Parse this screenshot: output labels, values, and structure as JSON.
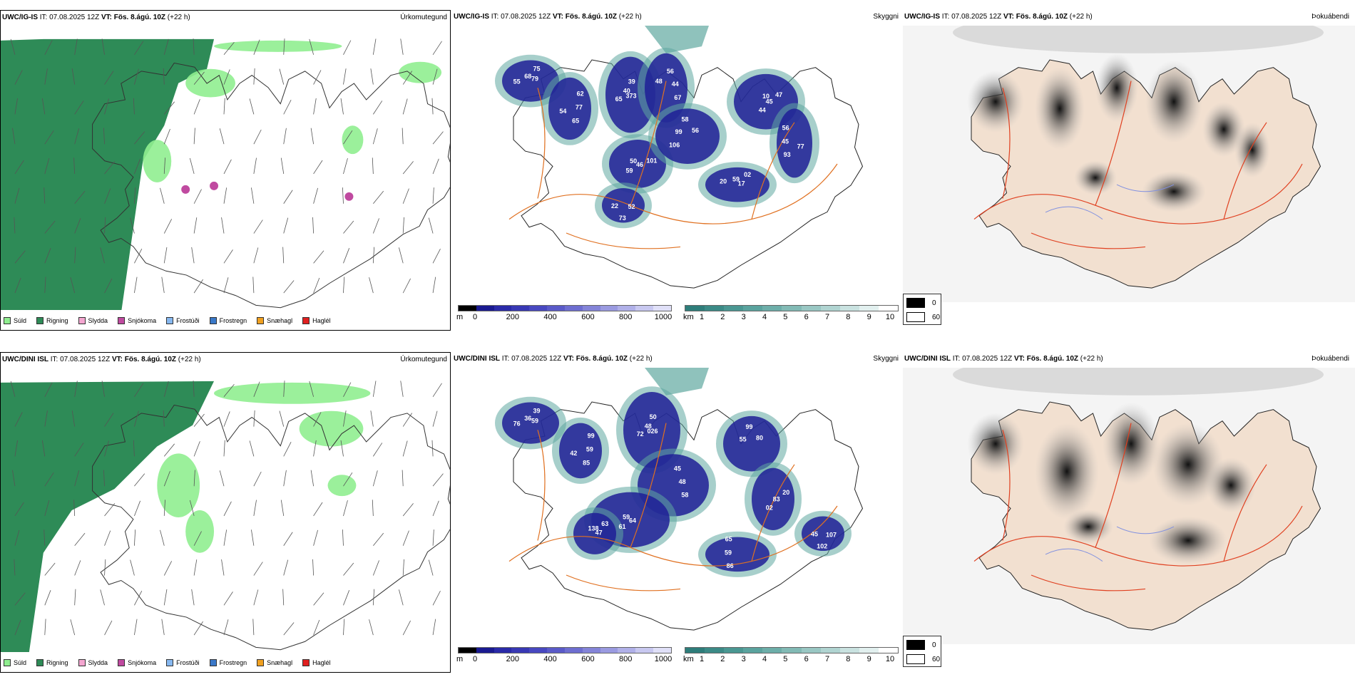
{
  "rows": [
    {
      "precip_panel": {
        "model": "UWC/IG-IS",
        "it": "IT: 07.08.2025 12Z",
        "vt": "VT: Fös. 8.ágú. 10Z",
        "lead": "(+22 h)",
        "title": "Úrkomutegund"
      },
      "cloud_panel": {
        "model": "UWC/IG-IS",
        "it": "IT: 07.08.2025 12Z",
        "vt": "VT: Fös. 8.ágú. 10Z",
        "lead": "(+22 h)",
        "title": "Skyggni",
        "numbers": [
          "79",
          "54",
          "39",
          "67",
          "50",
          "56",
          "44",
          "56",
          "17",
          "22",
          "75",
          "65",
          "40",
          "44",
          "59",
          "58",
          "45",
          "45",
          "02",
          "73",
          "68",
          "77",
          "65",
          "56",
          "46",
          "99",
          "47",
          "93",
          "59",
          "52",
          "55",
          "62",
          "373",
          "48",
          "101",
          "106",
          "10",
          "77",
          "20"
        ]
      },
      "fog_panel": {
        "model": "UWC/IG-IS",
        "it": "IT: 07.08.2025 12Z",
        "vt": "VT: Fös. 8.ágú. 10Z",
        "lead": "(+22 h)",
        "title": "Þokuábendi"
      }
    },
    {
      "precip_panel": {
        "model": "UWC/DINI ISL",
        "it": "IT: 07.08.2025 12Z",
        "vt": "VT: Fös. 8.ágú. 10Z",
        "lead": "(+22 h)",
        "title": "Úrkomutegund"
      },
      "cloud_panel": {
        "model": "UWC/DINI ISL",
        "it": "IT: 07.08.2025 12Z",
        "vt": "VT: Fös. 8.ágú. 10Z",
        "lead": "(+22 h)",
        "title": "Skyggni",
        "numbers": [
          "59",
          "42",
          "50",
          "58",
          "59",
          "80",
          "02",
          "65",
          "47",
          "45",
          "39",
          "85",
          "48",
          "48",
          "61",
          "99",
          "83",
          "59",
          "63",
          "102",
          "36",
          "59",
          "72",
          "45",
          "64",
          "55",
          "20",
          "86",
          "138",
          "107",
          "76",
          "99",
          "026"
        ]
      },
      "fog_panel": {
        "model": "UWC/DINI ISL",
        "it": "IT: 07.08.2025 12Z",
        "vt": "VT: Fös. 8.ágú. 10Z",
        "lead": "(+22 h)",
        "title": "Þokuábendi"
      }
    }
  ],
  "precip_legend": [
    {
      "label": "Súld",
      "color": "#90ee90"
    },
    {
      "label": "Rigning",
      "color": "#2e8b57"
    },
    {
      "label": "Slydda",
      "color": "#f4a6d0"
    },
    {
      "label": "Snjókoma",
      "color": "#c04aa0"
    },
    {
      "label": "Frostúði",
      "color": "#87b8f0"
    },
    {
      "label": "Frostregn",
      "color": "#3a78c8"
    },
    {
      "label": "Snæhagl",
      "color": "#f0a020"
    },
    {
      "label": "Haglél",
      "color": "#e02020"
    }
  ],
  "height_bar": {
    "unit": "m",
    "labels": [
      "0",
      "200",
      "400",
      "600",
      "800",
      "1000"
    ],
    "colors": [
      "#000000",
      "#1a1a90",
      "#2a2aa8",
      "#3838b4",
      "#4848c0",
      "#5a5ac8",
      "#6e6ed0",
      "#8484d8",
      "#9a9ae0",
      "#b0b0e8",
      "#c8c8f0",
      "#e0e0f8"
    ]
  },
  "visibility_bar": {
    "unit": "km",
    "labels": [
      "1",
      "2",
      "3",
      "4",
      "5",
      "6",
      "7",
      "8",
      "9",
      "10"
    ],
    "colors": [
      "#2e7d7a",
      "#3b8a86",
      "#4a9792",
      "#5aa39e",
      "#6daea9",
      "#82bab5",
      "#99c7c3",
      "#b0d4d1",
      "#c9e2e0",
      "#e2f0ef",
      "#ffffff"
    ]
  },
  "fog_legend": {
    "black_label": "0",
    "white_label": "60"
  },
  "colors": {
    "rain": "#2e8b57",
    "drizzle": "#90ee90",
    "cloud_dark": "#1e1e96",
    "cloud_teal": "#5fa8a0",
    "road": "#e07020",
    "land_fog": "#f2e0d0"
  }
}
